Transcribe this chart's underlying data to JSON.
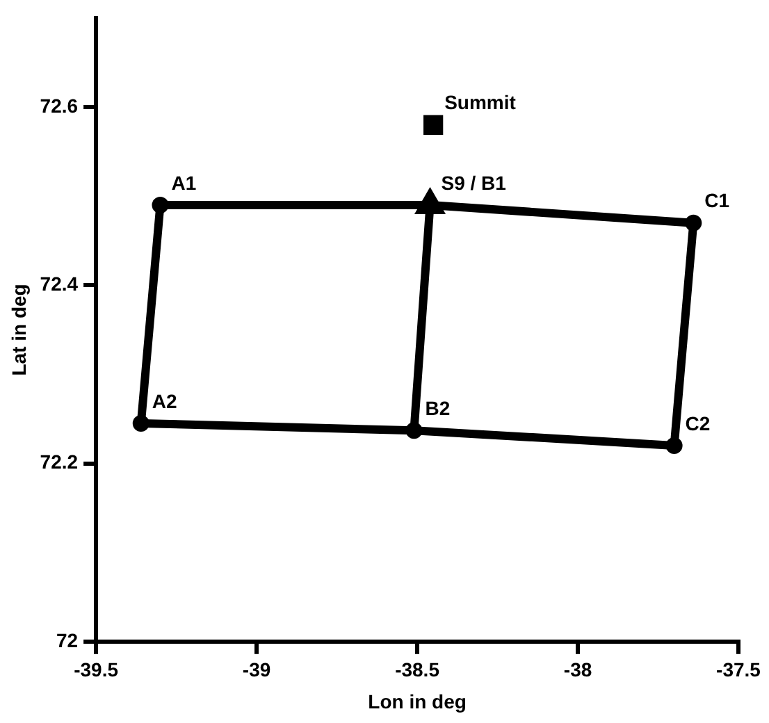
{
  "chart_data": {
    "type": "line",
    "xlabel": "Lon in deg",
    "ylabel": "Lat in deg",
    "xlim": [
      -39.5,
      -37.5
    ],
    "xticks": [
      -39.5,
      -39,
      -38.5,
      -38,
      -37.5
    ],
    "ylim": [
      72,
      72.7
    ],
    "yticks": [
      72,
      72.2,
      72.4,
      72.6
    ],
    "grid": false,
    "legend": false,
    "series": [
      {
        "type": "scatter",
        "color": "#000000",
        "marker": "circle",
        "x": [
          -39.3,
          -37.64,
          -37.7,
          -38.51,
          -39.36
        ],
        "values": [
          72.49,
          72.47,
          72.22,
          72.237,
          72.245
        ]
      },
      {
        "type": "scatter",
        "color": "#000000",
        "marker": "square",
        "x": [
          -38.45
        ],
        "values": [
          72.58
        ]
      },
      {
        "type": "scatter",
        "color": "#000000",
        "marker": "triangle",
        "x": [
          -38.46
        ],
        "values": [
          72.49
        ]
      },
      {
        "type": "line",
        "color": "#000000",
        "marker": "none",
        "line_style": "solid",
        "x": [
          -39.3,
          -38.46,
          -37.64
        ],
        "values": [
          72.49,
          72.49,
          72.47
        ]
      },
      {
        "type": "line",
        "color": "#000000",
        "marker": "none",
        "line_style": "solid",
        "x": [
          -39.36,
          -38.51,
          -37.7
        ],
        "values": [
          72.245,
          72.237,
          72.22
        ]
      },
      {
        "color": "#000000",
        "marker": "none",
        "line_style": "solid",
        "x": [
          -39.3,
          -39.36
        ],
        "values": [
          72.49,
          72.245
        ]
      },
      {
        "color": "#000000",
        "marker": "none",
        "line_style": "solid",
        "x": [
          -38.46,
          -38.51
        ],
        "values": [
          72.49,
          72.237
        ]
      },
      {
        "color": "#000000",
        "marker": "none",
        "line_style": "solid",
        "x": [
          -37.64,
          -37.7
        ],
        "values": [
          72.47,
          72.22
        ]
      }
    ],
    "annotations": [
      {
        "text": "A1",
        "x": -39.3,
        "y": 72.49
      },
      {
        "text": "A2",
        "x": -39.36,
        "y": 72.245
      },
      {
        "text": "B2",
        "x": -38.51,
        "y": 72.237
      },
      {
        "text": "S9 / B1",
        "x": -38.46,
        "y": 72.49
      },
      {
        "text": "C1",
        "x": -37.64,
        "y": 72.47
      },
      {
        "text": "C2",
        "x": -37.7,
        "y": 72.22
      },
      {
        "text": "Summit",
        "x": -38.45,
        "y": 72.58
      }
    ]
  }
}
